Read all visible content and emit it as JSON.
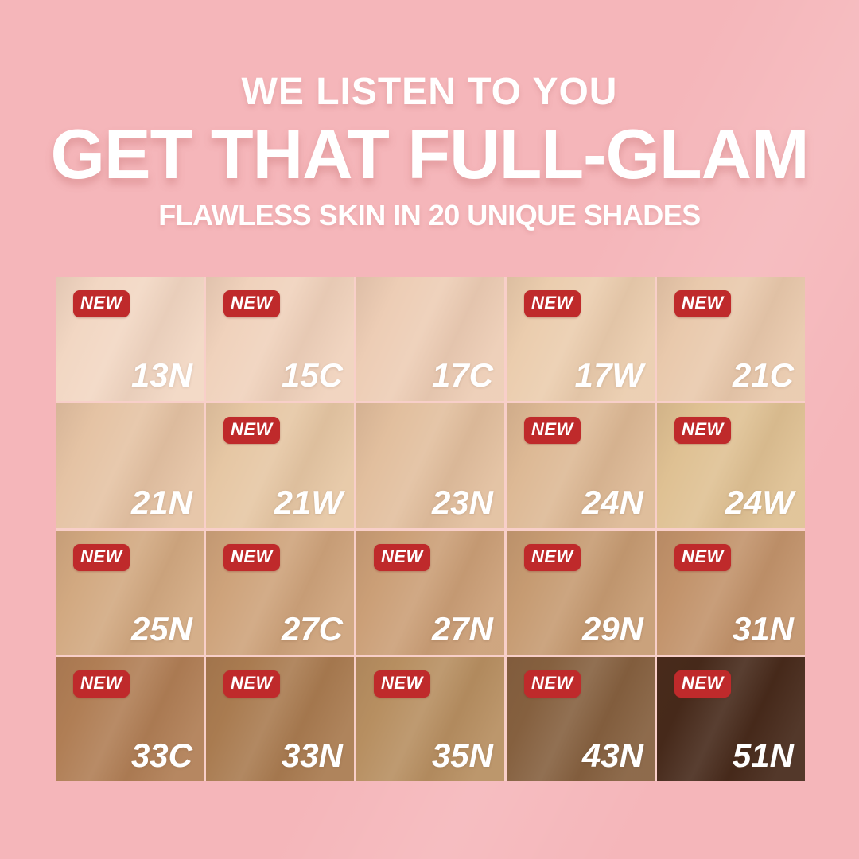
{
  "header": {
    "line1": "WE LISTEN TO YOU",
    "line2": "GET THAT FULL-GLAM",
    "line3": "FLAWLESS SKIN IN 20 UNIQUE SHADES"
  },
  "badge_label": "NEW",
  "colors": {
    "background": "#F5B6BA",
    "grid_gap": "#F8CFC9",
    "badge_red": "#BF2A2B",
    "badge_text": "#FFFFFF",
    "shade_label_text": "#FFFFFF",
    "header_text": "#FFFFFF"
  },
  "shades": [
    {
      "code": "13N",
      "color": "#F2D7C3",
      "is_new": true
    },
    {
      "code": "15C",
      "color": "#F0D2BC",
      "is_new": true
    },
    {
      "code": "17C",
      "color": "#EDCDB5",
      "is_new": false
    },
    {
      "code": "17W",
      "color": "#EBCDAE",
      "is_new": true
    },
    {
      "code": "21C",
      "color": "#E9C9AC",
      "is_new": true
    },
    {
      "code": "21N",
      "color": "#E5C3A4",
      "is_new": false
    },
    {
      "code": "21W",
      "color": "#E6C7A4",
      "is_new": true
    },
    {
      "code": "23N",
      "color": "#E2BF9E",
      "is_new": false
    },
    {
      "code": "24N",
      "color": "#DDB995",
      "is_new": true
    },
    {
      "code": "24W",
      "color": "#DFC193",
      "is_new": true
    },
    {
      "code": "25N",
      "color": "#D2A981",
      "is_new": true
    },
    {
      "code": "27C",
      "color": "#CEA37B",
      "is_new": true
    },
    {
      "code": "27N",
      "color": "#CB9F77",
      "is_new": true
    },
    {
      "code": "29N",
      "color": "#C69B72",
      "is_new": true
    },
    {
      "code": "31N",
      "color": "#C2936B",
      "is_new": true
    },
    {
      "code": "33C",
      "color": "#B07E55",
      "is_new": true
    },
    {
      "code": "33N",
      "color": "#A97B50",
      "is_new": true
    },
    {
      "code": "35N",
      "color": "#B78F61",
      "is_new": true
    },
    {
      "code": "43N",
      "color": "#85603F",
      "is_new": true
    },
    {
      "code": "51N",
      "color": "#46291A",
      "is_new": true
    }
  ]
}
